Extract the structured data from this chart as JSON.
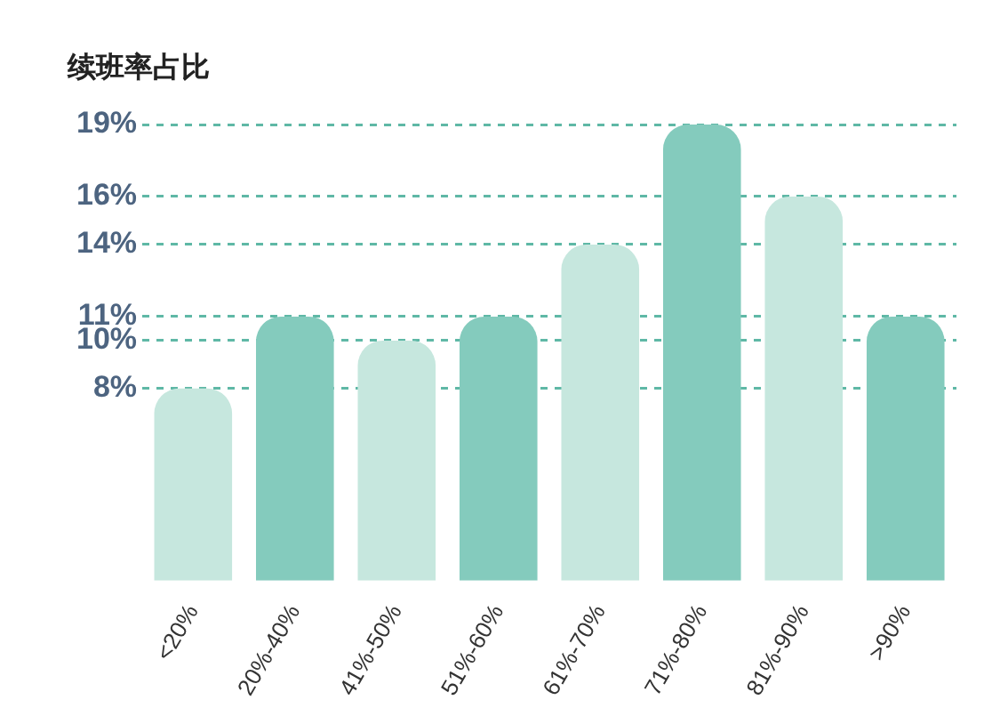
{
  "chart_data": {
    "type": "bar",
    "title": "续班率占比",
    "categories": [
      "<20%",
      "20%-40%",
      "41%-50%",
      "51%-60%",
      "61%-70%",
      "71%-80%",
      "81%-90%",
      ">90%"
    ],
    "values": [
      8,
      11,
      10,
      11,
      14,
      19,
      16,
      11
    ],
    "colors": [
      "#c6e7de",
      "#84cbbd",
      "#c6e7de",
      "#84cbbd",
      "#c6e7de",
      "#84cbbd",
      "#c6e7de",
      "#84cbbd"
    ],
    "ylim": [
      0,
      19
    ],
    "yticks": [
      {
        "value": 8,
        "label": "8%"
      },
      {
        "value": 10,
        "label": "10%"
      },
      {
        "value": 11,
        "label": "11%"
      },
      {
        "value": 14,
        "label": "14%"
      },
      {
        "value": 16,
        "label": "16%"
      },
      {
        "value": 19,
        "label": "19%"
      }
    ],
    "grid": "y",
    "legend": false
  }
}
